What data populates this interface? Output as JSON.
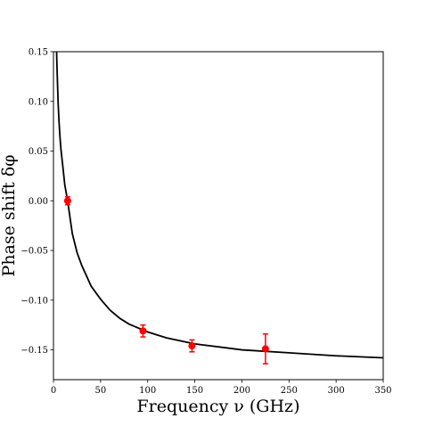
{
  "chart_data": {
    "type": "scatter",
    "xlabel": "Frequency ν (GHz)",
    "ylabel": "Phase shift δφ",
    "xlim": [
      0,
      350
    ],
    "ylim": [
      -0.18,
      0.15
    ],
    "grid": false,
    "xticks": [
      0,
      50,
      100,
      150,
      200,
      250,
      300,
      350
    ],
    "xtick_labels": [
      "0",
      "50",
      "100",
      "150",
      "200",
      "250",
      "300",
      "350"
    ],
    "yticks": [
      0.15,
      0.1,
      0.05,
      0.0,
      -0.05,
      -0.1,
      -0.15
    ],
    "ytick_labels": [
      "0.15",
      "0.10",
      "0.05",
      "0.00",
      "−0.05",
      "−0.10",
      "−0.15"
    ],
    "series": [
      {
        "type": "scatter",
        "color": "#ff0000",
        "x": [
          15,
          95,
          147,
          225
        ],
        "y": [
          0.0,
          -0.131,
          -0.146,
          -0.149
        ],
        "yerr": [
          0.004,
          0.006,
          0.006,
          0.015
        ]
      },
      {
        "type": "line",
        "color": "#000000",
        "x": [
          3.3,
          4,
          5,
          6,
          7,
          8,
          10,
          12,
          15,
          20,
          25,
          30,
          40,
          50,
          60,
          70,
          80,
          100,
          120,
          150,
          200,
          250,
          300,
          350
        ],
        "y": [
          0.15,
          0.126,
          0.097,
          0.078,
          0.063,
          0.051,
          0.034,
          0.016,
          0.0,
          -0.033,
          -0.052,
          -0.065,
          -0.086,
          -0.099,
          -0.11,
          -0.118,
          -0.124,
          -0.132,
          -0.138,
          -0.144,
          -0.15,
          -0.153,
          -0.156,
          -0.158
        ]
      }
    ]
  }
}
